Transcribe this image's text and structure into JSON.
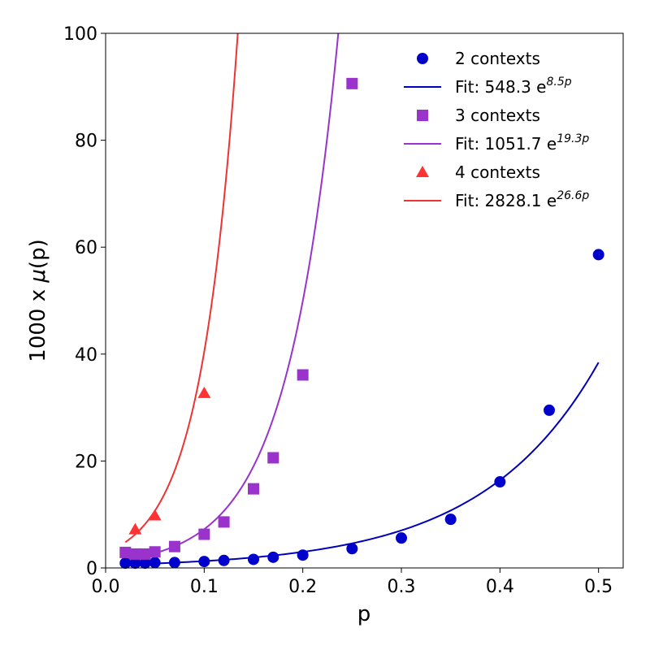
{
  "chart_data": {
    "type": "scatter",
    "title": "",
    "xlabel": "p",
    "ylabel_prefix": "1000 x ",
    "ylabel_mu": "μ",
    "ylabel_suffix": "(p)",
    "xlim": [
      0.0,
      0.525
    ],
    "ylim": [
      0,
      100
    ],
    "xticks": [
      0.0,
      0.1,
      0.2,
      0.3,
      0.4,
      0.5
    ],
    "xtick_labels": [
      "0.0",
      "0.1",
      "0.2",
      "0.3",
      "0.4",
      "0.5"
    ],
    "yticks": [
      0,
      20,
      40,
      60,
      80,
      100
    ],
    "ytick_labels": [
      "0",
      "20",
      "40",
      "60",
      "80",
      "100"
    ],
    "grid": false,
    "legend_position": "top-right",
    "series": [
      {
        "name": "2 contexts",
        "marker": "circle",
        "color": "#0000cc",
        "x": [
          0.02,
          0.03,
          0.04,
          0.05,
          0.07,
          0.1,
          0.12,
          0.15,
          0.17,
          0.2,
          0.25,
          0.3,
          0.35,
          0.4,
          0.45,
          0.5
        ],
        "y": [
          0.9,
          0.9,
          0.9,
          1.0,
          1.0,
          1.2,
          1.4,
          1.6,
          2.0,
          2.4,
          3.6,
          5.6,
          9.1,
          16.1,
          29.5,
          58.6
        ],
        "fit": {
          "label_main": "Fit: 548.3 e",
          "label_exp": "8.5p",
          "a": 548.3,
          "b": 8.5,
          "x_range": [
            0.02,
            0.5
          ],
          "color": "#0000bb"
        }
      },
      {
        "name": "3 contexts",
        "marker": "square",
        "color": "#9933cc",
        "x": [
          0.02,
          0.03,
          0.04,
          0.05,
          0.07,
          0.1,
          0.12,
          0.15,
          0.17,
          0.2,
          0.25
        ],
        "y": [
          2.9,
          2.6,
          2.6,
          3.0,
          4.0,
          6.3,
          8.6,
          14.8,
          20.6,
          36.1,
          90.6
        ],
        "fit": {
          "label_main": "Fit: 1051.7 e",
          "label_exp": "19.3p",
          "a": 1051.7,
          "b": 19.3,
          "x_range": [
            0.02,
            0.25
          ],
          "color": "#9933cc"
        }
      },
      {
        "name": "4 contexts",
        "marker": "triangle",
        "color": "#ff3333",
        "x": [
          0.03,
          0.05,
          0.1
        ],
        "y": [
          7.2,
          9.8,
          32.7
        ],
        "fit": {
          "label_main": "Fit: 2828.1 e",
          "label_exp": "26.6p",
          "a": 2828.1,
          "b": 26.6,
          "x_range": [
            0.02,
            0.15
          ],
          "color": "#ee3333"
        }
      }
    ]
  }
}
